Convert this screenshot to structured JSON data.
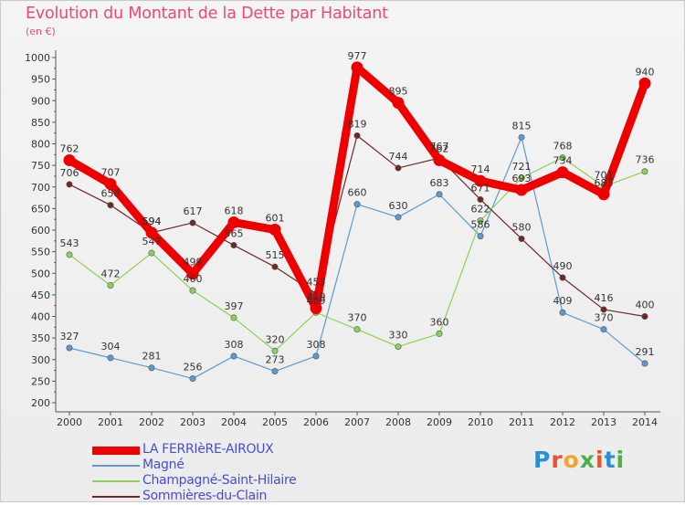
{
  "title": "Evolution du Montant de la Dette par Habitant",
  "unit": "(en €)",
  "brand": {
    "text": "Proxiti",
    "colors": [
      "#2a8ed6",
      "#e8552d",
      "#f0a431",
      "#4ab04a",
      "#e8552d",
      "#2a8ed6",
      "#4ab04a"
    ]
  },
  "chart_data": {
    "type": "line",
    "categories": [
      "2000",
      "2001",
      "2002",
      "2003",
      "2004",
      "2005",
      "2006",
      "2007",
      "2008",
      "2009",
      "2010",
      "2011",
      "2012",
      "2013",
      "2014"
    ],
    "ylim": [
      200,
      1000
    ],
    "ystep": 50,
    "grid": false,
    "legend_position": "bottom",
    "series": [
      {
        "name": "LA FERRIèRE-AIROUX",
        "color": "#ee0000",
        "values": [
          762,
          707,
          594,
          499,
          618,
          601,
          419,
          977,
          895,
          762,
          714,
          693,
          734,
          683,
          940
        ],
        "labels": [
          762,
          707,
          594,
          499,
          618,
          601,
          419,
          977,
          895,
          762,
          714,
          693,
          734,
          683,
          940
        ]
      },
      {
        "name": "Magné",
        "color": "#5b9bd1",
        "values": [
          327,
          304,
          281,
          256,
          308,
          273,
          308,
          660,
          630,
          683,
          586,
          815,
          409,
          370,
          291
        ],
        "labels": [
          327,
          304,
          281,
          256,
          308,
          273,
          308,
          660,
          630,
          683,
          586,
          815,
          409,
          370,
          291
        ]
      },
      {
        "name": "Champagné-Saint-Hilaire",
        "color": "#8dd05a",
        "values": [
          543,
          472,
          547,
          460,
          397,
          320,
          409,
          370,
          330,
          360,
          622,
          721,
          768,
          701,
          736
        ],
        "labels": [
          543,
          472,
          547,
          460,
          397,
          320,
          409,
          370,
          330,
          360,
          622,
          721,
          768,
          701,
          736
        ]
      },
      {
        "name": "Sommières-du-Clain",
        "color": "#6e2828",
        "values": [
          706,
          658,
          594,
          617,
          565,
          515,
          453,
          819,
          744,
          767,
          671,
          580,
          490,
          416,
          400
        ],
        "labels": [
          706,
          658,
          594,
          617,
          565,
          515,
          453,
          819,
          744,
          767,
          671,
          580,
          490,
          416,
          400
        ]
      }
    ]
  }
}
